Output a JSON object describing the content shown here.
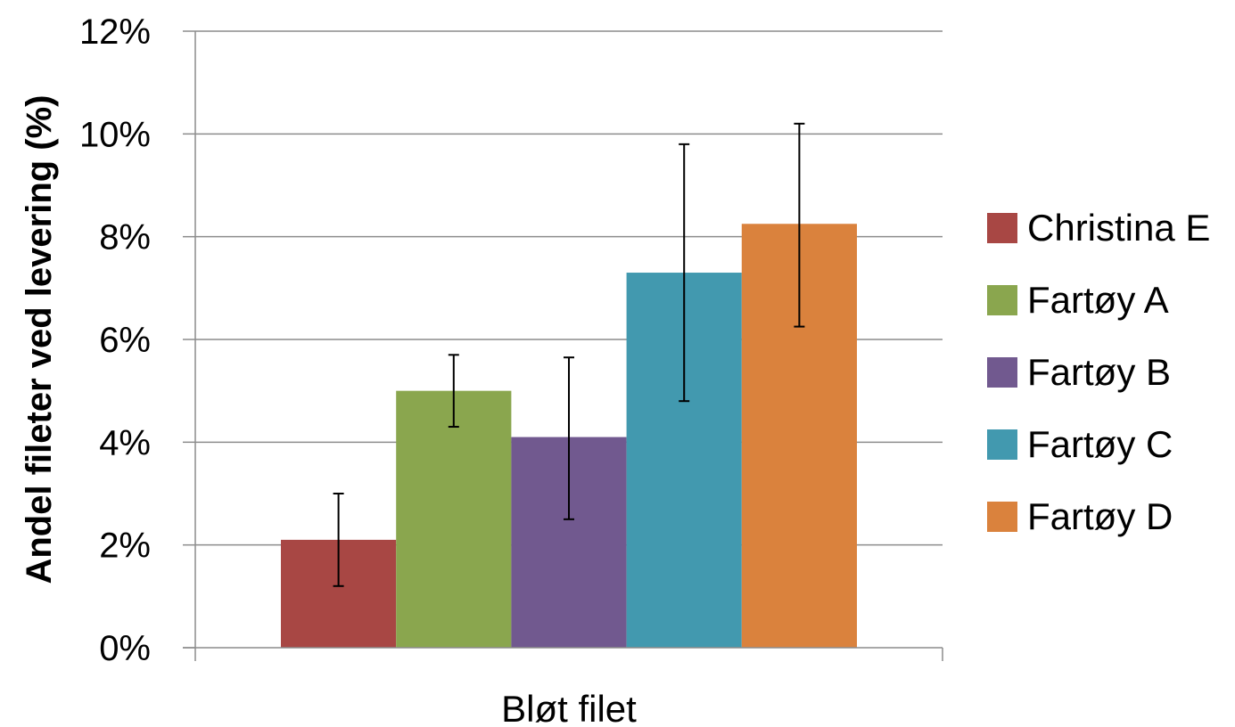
{
  "chart_data": {
    "type": "bar",
    "categories": [
      "Bløt filet"
    ],
    "series": [
      {
        "name": "Christina E",
        "values": [
          2.1
        ],
        "error_low": [
          1.2
        ],
        "error_high": [
          3.0
        ],
        "color": "#a84744"
      },
      {
        "name": "Fartøy A",
        "values": [
          5.0
        ],
        "error_low": [
          4.3
        ],
        "error_high": [
          5.7
        ],
        "color": "#8aa64e"
      },
      {
        "name": "Fartøy B",
        "values": [
          4.1
        ],
        "error_low": [
          2.5
        ],
        "error_high": [
          5.65
        ],
        "color": "#71598f"
      },
      {
        "name": "Fartøy C",
        "values": [
          7.3
        ],
        "error_low": [
          4.8
        ],
        "error_high": [
          9.8
        ],
        "color": "#4299af"
      },
      {
        "name": "Fartøy D",
        "values": [
          8.25
        ],
        "error_low": [
          6.25
        ],
        "error_high": [
          10.2
        ],
        "color": "#da823d"
      }
    ],
    "title": "",
    "xlabel": "",
    "ylabel": "Andel fileter ved levering (%)",
    "ylim": [
      0,
      12
    ],
    "yticks": [
      0,
      2,
      4,
      6,
      8,
      10,
      12
    ],
    "ytick_labels": [
      "0%",
      "2%",
      "4%",
      "6%",
      "8%",
      "10%",
      "12%"
    ],
    "grid": true,
    "legend_position": "right"
  }
}
